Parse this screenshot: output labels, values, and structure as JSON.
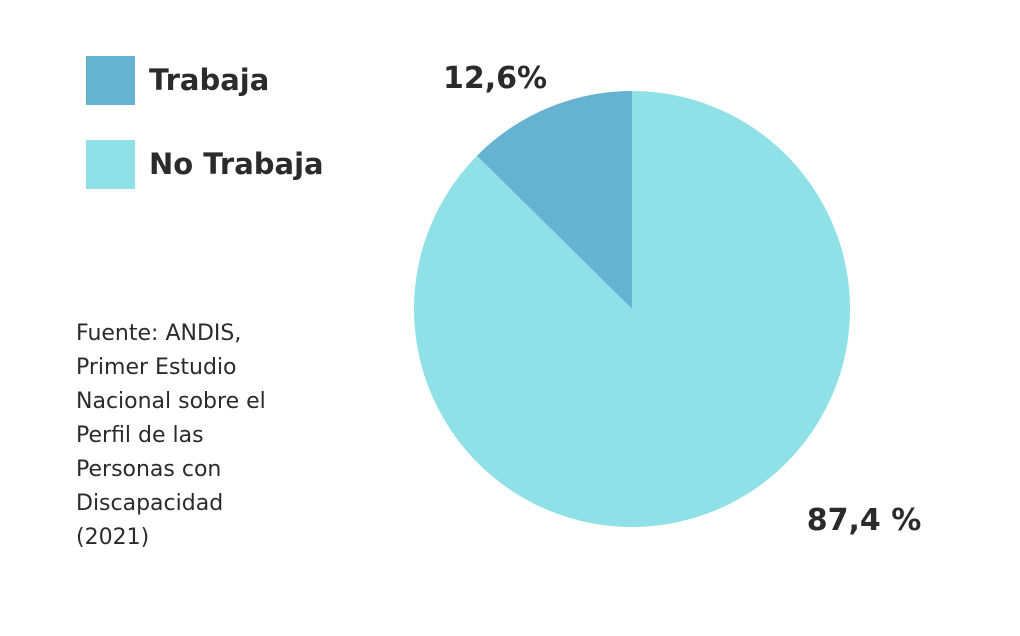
{
  "chart_data": {
    "type": "pie",
    "categories": [
      "Trabaja",
      "No Trabaja"
    ],
    "values": [
      12.6,
      87.4
    ],
    "data_labels": [
      "12,6%",
      "87,4 %"
    ],
    "colors": [
      "#66b3d1",
      "#8fe1e7"
    ],
    "legend_position": "top-left"
  },
  "legend": {
    "items": [
      {
        "label": "Trabaja",
        "color": "#66b3d1"
      },
      {
        "label": "No Trabaja",
        "color": "#8fe1e7"
      }
    ]
  },
  "source": {
    "lines": [
      "Fuente: ANDIS,",
      "Primer Estudio",
      "Nacional sobre el",
      "Perfil de las",
      "Personas con",
      "Discapacidad",
      "(2021)"
    ]
  }
}
